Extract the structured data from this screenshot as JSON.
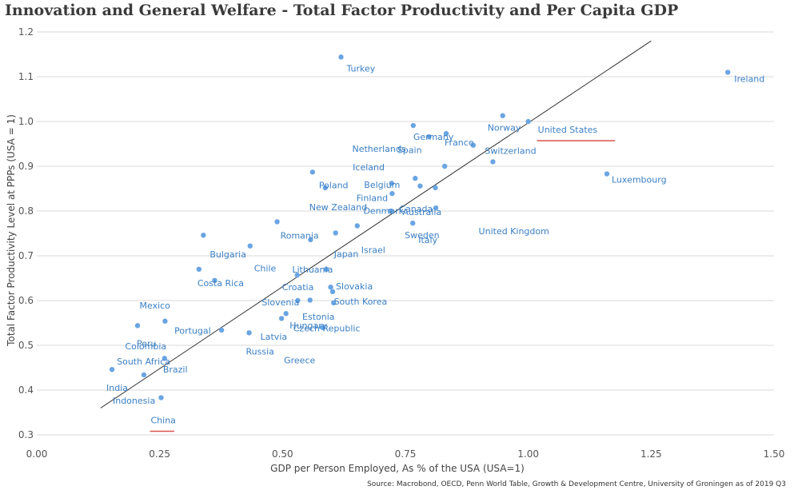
{
  "title": "Innovation and General Welfare - Total Factor Productivity and Per Capita GDP",
  "source": "Source: Macrobond, OECD, Penn World Table, Growth & Development Centre, University of Groningen as of 2019 Q3",
  "chart_data": {
    "type": "scatter",
    "xlabel": "GDP per Person Employed, As % of the USA (USA=1)",
    "ylabel": "Total Factor Productivity Level at PPPs (USA = 1)",
    "xlim": [
      0.0,
      1.5
    ],
    "ylim": [
      0.3,
      1.2
    ],
    "x_ticks": [
      "0.00",
      "0.25",
      "0.50",
      "0.75",
      "1.00",
      "1.25",
      "1.50"
    ],
    "y_ticks": [
      "0.3",
      "0.4",
      "0.5",
      "0.6",
      "0.7",
      "0.8",
      "0.9",
      "1.0",
      "1.1",
      "1.2"
    ],
    "grid": "horizontal",
    "marker_color": "#6aa5e3",
    "label_color": "#3b7fc4",
    "trendline": {
      "x": [
        0.13,
        1.25
      ],
      "y": [
        0.36,
        1.18
      ],
      "color": "#333333"
    },
    "highlight_color": "#d9534f",
    "highlighted": [
      "United States",
      "China"
    ],
    "points": [
      {
        "label": "Ireland",
        "x": 1.406,
        "y": 1.11
      },
      {
        "label": "Turkey",
        "x": 0.619,
        "y": 1.144
      },
      {
        "label": "Norway",
        "x": 0.948,
        "y": 1.013
      },
      {
        "label": "United States",
        "x": 1.0,
        "y": 1.0
      },
      {
        "label": "Germany",
        "x": 0.766,
        "y": 0.991
      },
      {
        "label": "France",
        "x": 0.833,
        "y": 0.973
      },
      {
        "label": "Netherlands",
        "x": 0.798,
        "y": 0.966
      },
      {
        "label": "Spain",
        "x": 0.888,
        "y": 0.947
      },
      {
        "label": "Switzerland",
        "x": 0.928,
        "y": 0.91
      },
      {
        "label": "Iceland",
        "x": 0.83,
        "y": 0.9
      },
      {
        "label": "Belgium",
        "x": 0.77,
        "y": 0.873
      },
      {
        "label": "Luxembourg",
        "x": 1.16,
        "y": 0.883
      },
      {
        "label": "Denmark",
        "x": 0.78,
        "y": 0.856
      },
      {
        "label": "Australia",
        "x": 0.811,
        "y": 0.852
      },
      {
        "label": "Poland",
        "x": 0.561,
        "y": 0.887
      },
      {
        "label": "New Zealand",
        "x": 0.587,
        "y": 0.852
      },
      {
        "label": "Finland",
        "x": 0.722,
        "y": 0.862
      },
      {
        "label": "Canada",
        "x": 0.723,
        "y": 0.839
      },
      {
        "label": "Sweden",
        "x": 0.812,
        "y": 0.807
      },
      {
        "label": "United Kingdom",
        "x": 0.72,
        "y": 0.8
      },
      {
        "label": "Italy",
        "x": 0.765,
        "y": 0.773
      },
      {
        "label": "Romania",
        "x": 0.489,
        "y": 0.776
      },
      {
        "label": "Israel",
        "x": 0.652,
        "y": 0.767
      },
      {
        "label": "Japan",
        "x": 0.608,
        "y": 0.751
      },
      {
        "label": "Lithuania",
        "x": 0.557,
        "y": 0.736
      },
      {
        "label": "Bulgaria",
        "x": 0.339,
        "y": 0.746
      },
      {
        "label": "Chile",
        "x": 0.434,
        "y": 0.722
      },
      {
        "label": "Costa Rica",
        "x": 0.33,
        "y": 0.67
      },
      {
        "label": "Slovakia",
        "x": 0.589,
        "y": 0.67
      },
      {
        "label": "Mexico",
        "x": 0.362,
        "y": 0.645
      },
      {
        "label": "Croatia",
        "x": 0.53,
        "y": 0.657
      },
      {
        "label": "South Korea",
        "x": 0.598,
        "y": 0.63
      },
      {
        "label": "Estonia",
        "x": 0.602,
        "y": 0.62
      },
      {
        "label": "Slovenia",
        "x": 0.531,
        "y": 0.6
      },
      {
        "label": "Czech Republic",
        "x": 0.556,
        "y": 0.601
      },
      {
        "label": "Hungary",
        "x": 0.604,
        "y": 0.595
      },
      {
        "label": "Latvia",
        "x": 0.507,
        "y": 0.571
      },
      {
        "label": "Portugal",
        "x": 0.498,
        "y": 0.56
      },
      {
        "label": "Greece",
        "x": 0.581,
        "y": 0.54
      },
      {
        "label": "Peru",
        "x": 0.205,
        "y": 0.544
      },
      {
        "label": "Colombia",
        "x": 0.261,
        "y": 0.554
      },
      {
        "label": "Russia",
        "x": 0.432,
        "y": 0.528
      },
      {
        "label": "South Africa",
        "x": 0.376,
        "y": 0.534
      },
      {
        "label": "Brazil",
        "x": 0.26,
        "y": 0.471
      },
      {
        "label": "India",
        "x": 0.153,
        "y": 0.446
      },
      {
        "label": "Indonesia",
        "x": 0.218,
        "y": 0.434
      },
      {
        "label": "China",
        "x": 0.253,
        "y": 0.383
      }
    ]
  }
}
